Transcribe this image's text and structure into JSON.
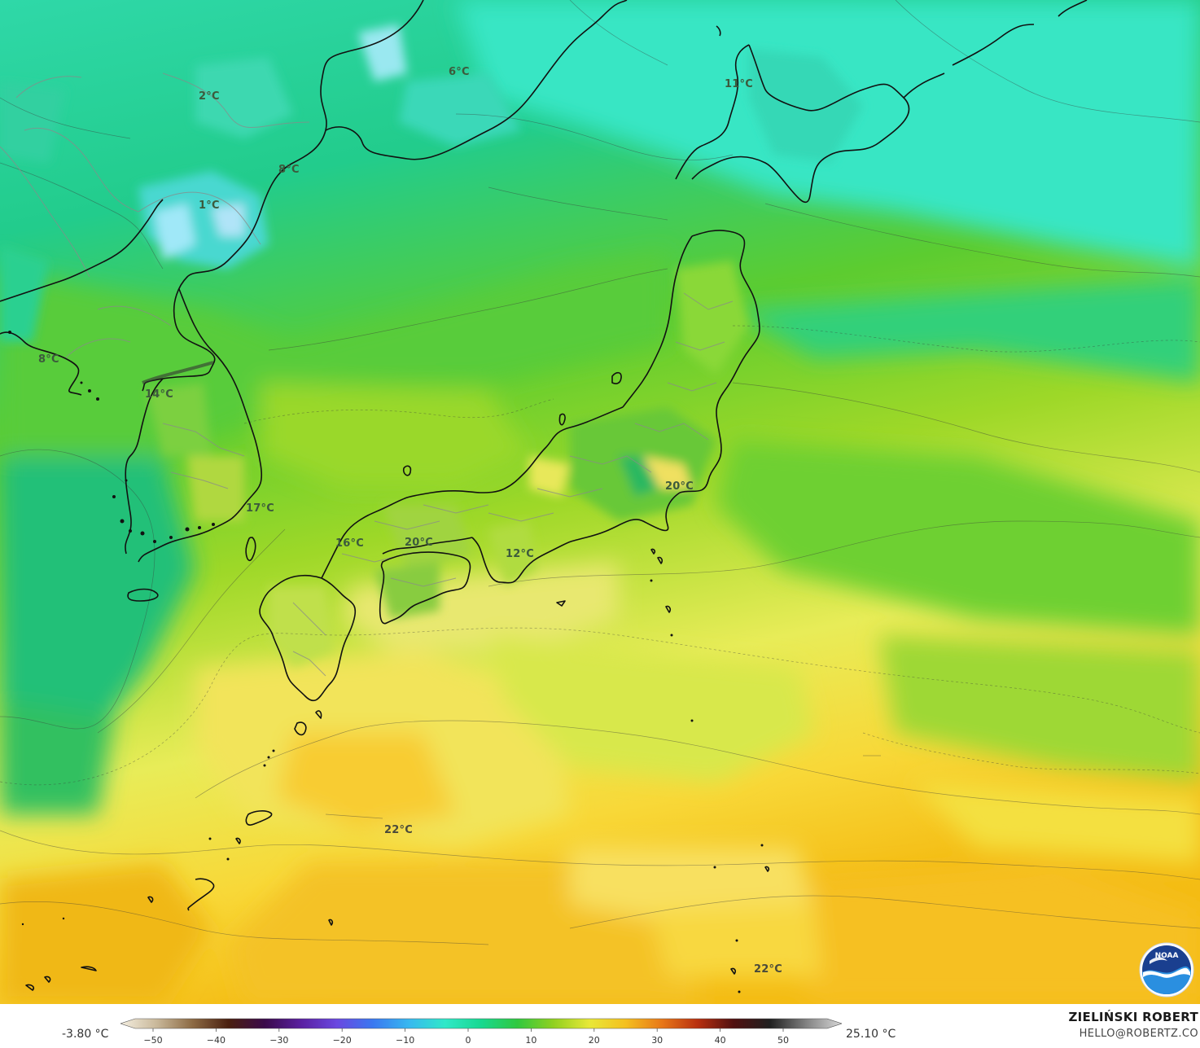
{
  "map": {
    "labels": [
      {
        "text": "2°C"
      },
      {
        "text": "6°C"
      },
      {
        "text": "11°C"
      },
      {
        "text": "8°C"
      },
      {
        "text": "1°C"
      },
      {
        "text": "8°C"
      },
      {
        "text": "14°C"
      },
      {
        "text": "17°C"
      },
      {
        "text": "16°C"
      },
      {
        "text": "20°C"
      },
      {
        "text": "12°C"
      },
      {
        "text": "20°C"
      },
      {
        "text": "22°C"
      },
      {
        "text": "22°C"
      }
    ]
  },
  "legend": {
    "min_value": "-3.80 °C",
    "max_value": "25.10 °C",
    "ticks": [
      "−50",
      "−40",
      "−30",
      "−20",
      "−10",
      "0",
      "10",
      "20",
      "30",
      "40",
      "50"
    ],
    "scale_colors": [
      "#f4eee0",
      "#c9b89a",
      "#8c6a44",
      "#4a2010",
      "#3a0a4a",
      "#5a20a0",
      "#6a48e0",
      "#3a78f0",
      "#38b8f0",
      "#30e8c8",
      "#18d890",
      "#30c840",
      "#90d020",
      "#e8e838",
      "#f4c020",
      "#e87818",
      "#b83010",
      "#501010",
      "#202020",
      "#808080",
      "#d8d8d8"
    ]
  },
  "credit": {
    "name": "ZIELIŃSKI ROBERT",
    "email": "HELLO@ROBERTZ.CO"
  },
  "logo": {
    "icon": "noaa-logo-icon",
    "text": "NOAA"
  }
}
